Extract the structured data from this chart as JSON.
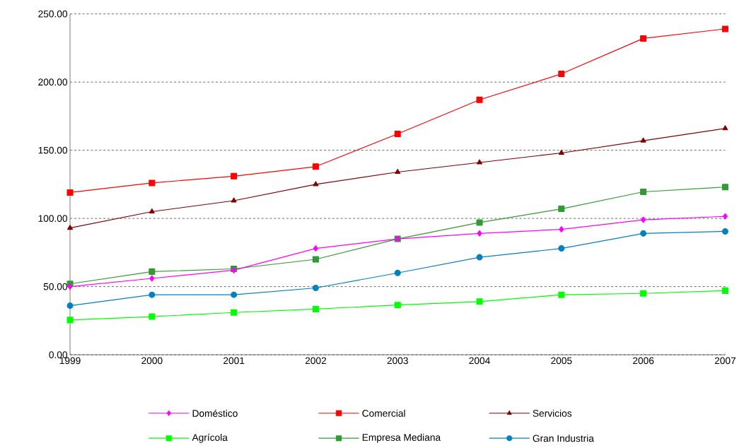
{
  "chart_data": {
    "type": "line",
    "x": [
      1999,
      2000,
      2001,
      2002,
      2003,
      2004,
      2005,
      2006,
      2007
    ],
    "xlim": [
      1999,
      2007
    ],
    "xticks": [
      1999,
      2000,
      2001,
      2002,
      2003,
      2004,
      2005,
      2006,
      2007
    ],
    "ylim": [
      0,
      250
    ],
    "yticks": [
      {
        "value": 0,
        "label": "0.00"
      },
      {
        "value": 50,
        "label": "50.00"
      },
      {
        "value": 100,
        "label": "100.00"
      },
      {
        "value": 150,
        "label": "150.00"
      },
      {
        "value": 200,
        "label": "200.00"
      },
      {
        "value": 250,
        "label": "250.00"
      }
    ],
    "grid": "y",
    "legend": "bottom",
    "series": [
      {
        "name": "Doméstico",
        "color": "#ff00ff",
        "marker": "diamond",
        "values": [
          50,
          56,
          62,
          78,
          85,
          89,
          92,
          99,
          101.5
        ]
      },
      {
        "name": "Comercial",
        "color": "#ff0000",
        "marker": "square",
        "values": [
          119,
          126,
          131,
          138,
          162,
          187,
          206,
          232,
          239
        ]
      },
      {
        "name": "Servicios",
        "color": "#800000",
        "marker": "triangle",
        "values": [
          93,
          105,
          113,
          125,
          134,
          141,
          148,
          157,
          166
        ]
      },
      {
        "name": "Agrícola",
        "color": "#00ff00",
        "marker": "square",
        "values": [
          25.5,
          28,
          31,
          33.5,
          36.5,
          39,
          44,
          45,
          47
        ]
      },
      {
        "name": "Empresa Mediana",
        "color": "#339933",
        "marker": "square",
        "values": [
          52,
          61,
          63,
          70,
          85,
          97,
          107,
          119.5,
          123
        ]
      },
      {
        "name": "Gran Industria",
        "color": "#0080c0",
        "marker": "circle",
        "values": [
          36,
          44,
          44,
          49,
          60,
          71.5,
          78,
          89,
          90.5
        ]
      }
    ]
  }
}
